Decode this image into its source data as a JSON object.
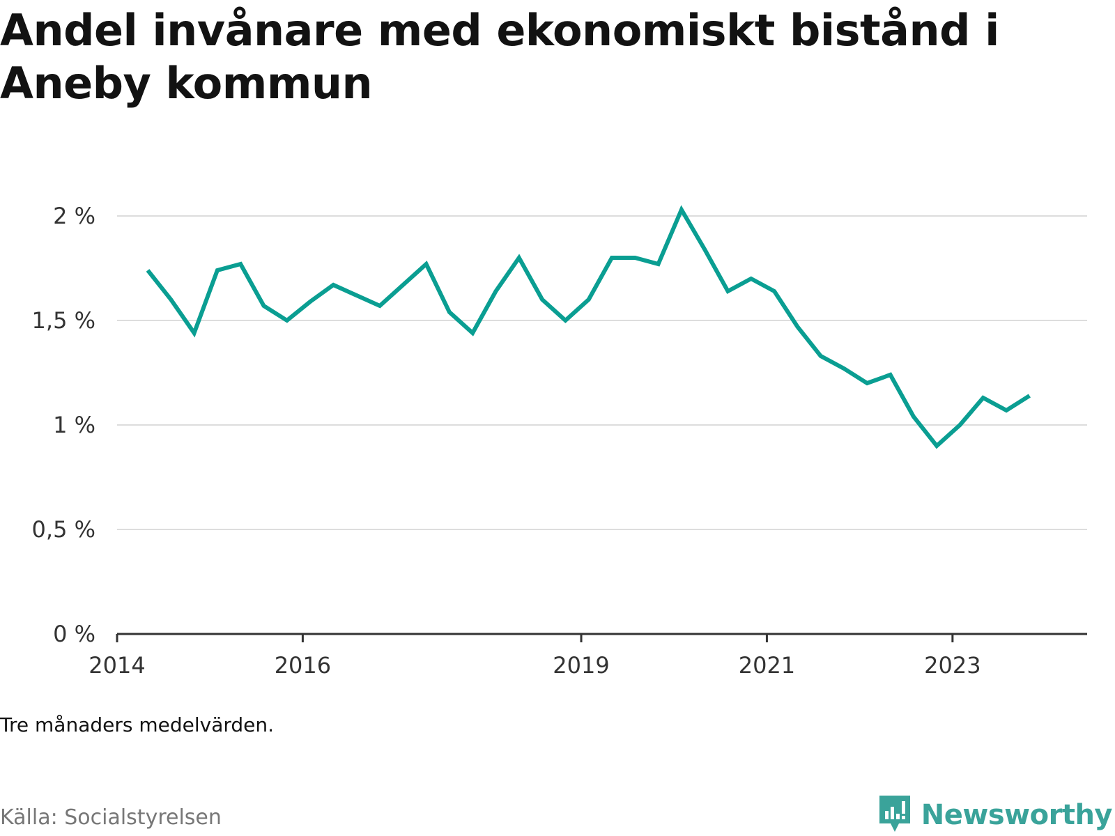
{
  "title": "Andel invånare med ekonomiskt bistånd i Aneby kommun",
  "note": "Tre månaders medelvärden.",
  "source": "Källa: Socialstyrelsen",
  "brand": {
    "name": "Newsworthy",
    "icon": "bar-chart-speech-icon"
  },
  "colors": {
    "line": "#0a9e92",
    "grid": "#dddddd",
    "axis": "#333333",
    "brand": "#3aa39a"
  },
  "chart_data": {
    "type": "line",
    "title": "Andel invånare med ekonomiskt bistånd i Aneby kommun",
    "xlabel": "",
    "ylabel": "",
    "y_ticks": [
      0,
      0.5,
      1,
      1.5,
      2
    ],
    "y_tick_labels": [
      "0 %",
      "0,5 %",
      "1 %",
      "1,5 %",
      "2 %"
    ],
    "ylim": [
      0,
      2.1
    ],
    "x_ticks": [
      2014,
      2016,
      2019,
      2021,
      2023
    ],
    "x_tick_labels": [
      "2014",
      "2016",
      "2019",
      "2021",
      "2023"
    ],
    "xlim": [
      2014.0,
      2024.45
    ],
    "grid": true,
    "series": [
      {
        "name": "Andel invånare med ekonomiskt bistånd",
        "x": [
          2014.33,
          2014.58,
          2014.83,
          2015.08,
          2015.33,
          2015.58,
          2015.83,
          2016.08,
          2016.33,
          2016.58,
          2016.83,
          2017.08,
          2017.33,
          2017.58,
          2017.83,
          2018.08,
          2018.33,
          2018.58,
          2018.83,
          2019.08,
          2019.33,
          2019.58,
          2019.83,
          2020.08,
          2020.33,
          2020.58,
          2020.83,
          2021.08,
          2021.33,
          2021.58,
          2021.83,
          2022.08,
          2022.33,
          2022.58,
          2022.83,
          2023.08,
          2023.33,
          2023.58,
          2023.83
        ],
        "values": [
          1.74,
          1.6,
          1.44,
          1.74,
          1.77,
          1.57,
          1.5,
          1.59,
          1.67,
          1.62,
          1.57,
          1.67,
          1.77,
          1.54,
          1.44,
          1.64,
          1.8,
          1.6,
          1.5,
          1.6,
          1.8,
          1.8,
          1.77,
          2.03,
          1.84,
          1.64,
          1.7,
          1.64,
          1.47,
          1.33,
          1.27,
          1.2,
          1.24,
          1.04,
          0.9,
          1.0,
          1.13,
          1.07,
          1.14
        ]
      }
    ]
  }
}
